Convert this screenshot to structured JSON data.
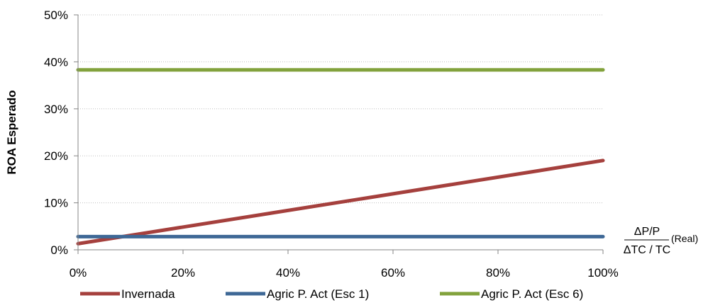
{
  "chart_data": {
    "type": "line",
    "title": "",
    "ylabel": "ROA Esperado",
    "xlabel": {
      "numerator": "ΔP/P",
      "denominator": "ΔTC / TC",
      "suffix": "(Real)"
    },
    "xlim": [
      0,
      100
    ],
    "ylim": [
      0,
      50
    ],
    "x_ticks": [
      0,
      20,
      40,
      60,
      80,
      100
    ],
    "x_tick_labels": [
      "0%",
      "20%",
      "40%",
      "60%",
      "80%",
      "100%"
    ],
    "y_ticks": [
      0,
      10,
      20,
      30,
      40,
      50
    ],
    "y_tick_labels": [
      "0%",
      "10%",
      "20%",
      "30%",
      "40%",
      "50%"
    ],
    "grid": "horizontal-dotted",
    "legend_position": "bottom",
    "series": [
      {
        "name": "Invernada",
        "color": "#A5403D",
        "x": [
          0,
          100
        ],
        "y": [
          1.3,
          19.0
        ]
      },
      {
        "name": "Agric P. Act (Esc 1)",
        "color": "#3E6896",
        "x": [
          0,
          100
        ],
        "y": [
          2.8,
          2.8
        ]
      },
      {
        "name": "Agric P. Act (Esc 6)",
        "color": "#82A23C",
        "x": [
          0,
          100
        ],
        "y": [
          38.3,
          38.3
        ]
      }
    ]
  }
}
